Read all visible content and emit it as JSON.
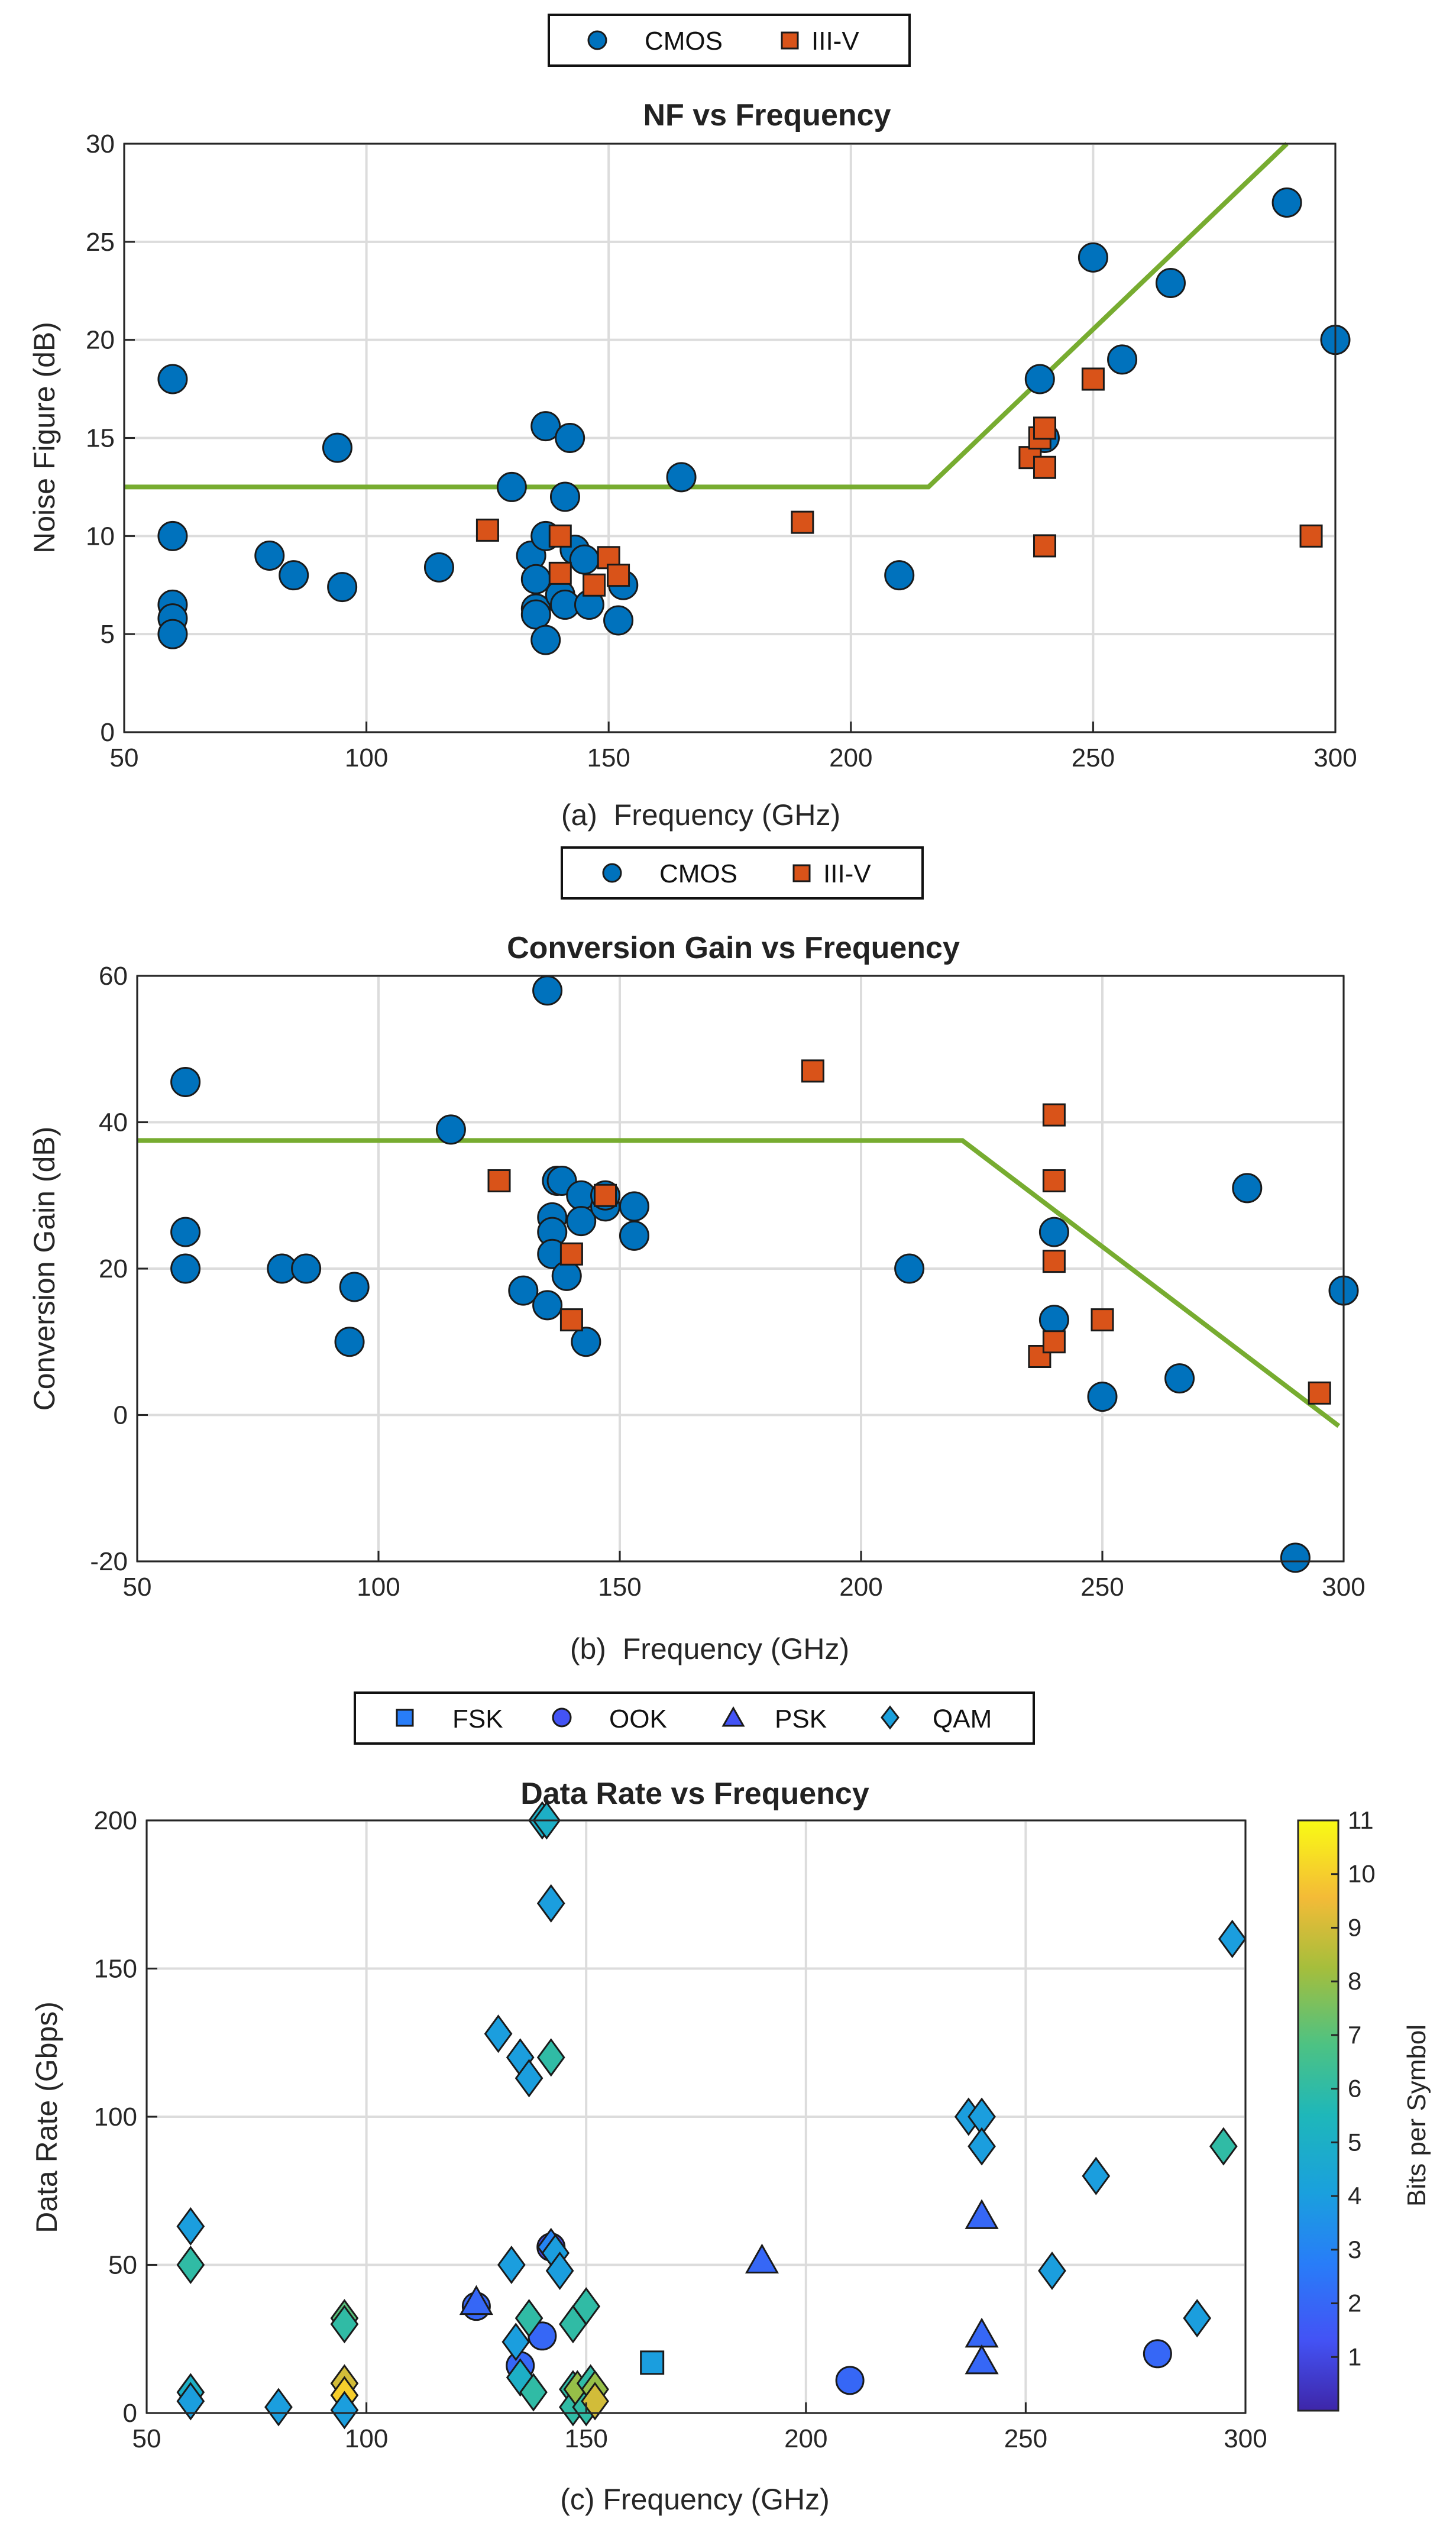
{
  "chart_data": [
    {
      "type": "scatter",
      "title": "NF vs Frequency",
      "xlabel": "(a)  Frequency (GHz)",
      "ylabel": "Noise Figure (dB)",
      "xlim": [
        50,
        300
      ],
      "ylim": [
        0,
        30
      ],
      "xticks": [
        "50",
        "100",
        "150",
        "200",
        "250",
        "300"
      ],
      "yticks": [
        "0",
        "5",
        "10",
        "15",
        "20",
        "25",
        "30"
      ],
      "grid": true,
      "legend": {
        "placement": "top-center",
        "entries": [
          "CMOS",
          "III-V"
        ]
      },
      "series": [
        {
          "name": "CMOS",
          "marker": "circle",
          "color": "#0072BD",
          "points": [
            [
              60,
              18
            ],
            [
              60,
              10
            ],
            [
              60,
              6.5
            ],
            [
              60,
              5.8
            ],
            [
              60,
              5
            ],
            [
              80,
              9
            ],
            [
              85,
              8
            ],
            [
              94,
              14.5
            ],
            [
              95,
              7.4
            ],
            [
              115,
              8.4
            ],
            [
              130,
              12.5
            ],
            [
              134,
              9
            ],
            [
              135,
              7.8
            ],
            [
              135,
              6.3
            ],
            [
              135,
              6
            ],
            [
              137,
              15.6
            ],
            [
              137,
              10
            ],
            [
              137,
              4.7
            ],
            [
              140,
              7
            ],
            [
              141,
              6.5
            ],
            [
              141,
              12
            ],
            [
              142,
              15
            ],
            [
              143,
              9.3
            ],
            [
              145,
              8.8
            ],
            [
              146,
              6.5
            ],
            [
              152,
              5.7
            ],
            [
              153,
              7.5
            ],
            [
              165,
              13
            ],
            [
              210,
              8
            ],
            [
              239,
              18
            ],
            [
              240,
              15
            ],
            [
              250,
              24.2
            ],
            [
              256,
              19
            ],
            [
              266,
              22.9
            ],
            [
              290,
              27
            ],
            [
              300,
              20
            ]
          ]
        },
        {
          "name": "III-V",
          "marker": "square",
          "color": "#D95319",
          "points": [
            [
              125,
              10.3
            ],
            [
              140,
              10
            ],
            [
              140,
              8.1
            ],
            [
              147,
              7.5
            ],
            [
              150,
              8.9
            ],
            [
              152,
              8
            ],
            [
              190,
              10.7
            ],
            [
              237,
              14
            ],
            [
              239,
              15
            ],
            [
              240,
              15.5
            ],
            [
              240,
              13.5
            ],
            [
              240,
              9.5
            ],
            [
              250,
              18
            ],
            [
              295,
              10
            ]
          ]
        },
        {
          "name": "",
          "type": "line",
          "color": "#77AC30",
          "points": [
            [
              50,
              12.5
            ],
            [
              216,
              12.5
            ],
            [
              290,
              30
            ]
          ]
        }
      ]
    },
    {
      "type": "scatter",
      "title": "Conversion Gain vs Frequency",
      "xlabel": "(b)  Frequency (GHz)",
      "ylabel": "Conversion Gain (dB)",
      "xlim": [
        50,
        300
      ],
      "ylim": [
        -20,
        60
      ],
      "xticks": [
        "50",
        "100",
        "150",
        "200",
        "250",
        "300"
      ],
      "yticks": [
        "-20",
        "0",
        "20",
        "40",
        "60"
      ],
      "grid": true,
      "legend": {
        "placement": "top-center",
        "entries": [
          "CMOS",
          "III-V"
        ]
      },
      "series": [
        {
          "name": "CMOS",
          "marker": "circle",
          "color": "#0072BD",
          "points": [
            [
              60,
              45.5
            ],
            [
              60,
              25
            ],
            [
              60,
              20
            ],
            [
              80,
              20
            ],
            [
              85,
              20
            ],
            [
              94,
              10
            ],
            [
              95,
              17.5
            ],
            [
              115,
              39
            ],
            [
              130,
              17
            ],
            [
              135,
              15
            ],
            [
              135,
              58
            ],
            [
              136,
              27
            ],
            [
              136,
              25
            ],
            [
              136,
              22
            ],
            [
              137,
              32
            ],
            [
              138,
              32
            ],
            [
              139,
              19
            ],
            [
              142,
              30
            ],
            [
              142,
              26.5
            ],
            [
              143,
              10
            ],
            [
              147,
              28.5
            ],
            [
              147,
              30
            ],
            [
              153,
              24.5
            ],
            [
              153,
              28.5
            ],
            [
              210,
              20
            ],
            [
              240,
              25
            ],
            [
              240,
              13
            ],
            [
              250,
              2.5
            ],
            [
              266,
              5
            ],
            [
              280,
              31
            ],
            [
              290,
              -19.5
            ],
            [
              300,
              17
            ]
          ]
        },
        {
          "name": "III-V",
          "marker": "square",
          "color": "#D95319",
          "points": [
            [
              125,
              32
            ],
            [
              140,
              22
            ],
            [
              140,
              13
            ],
            [
              147,
              30
            ],
            [
              190,
              47
            ],
            [
              237,
              8
            ],
            [
              240,
              41
            ],
            [
              240,
              32
            ],
            [
              240,
              21
            ],
            [
              240,
              10
            ],
            [
              250,
              13
            ],
            [
              295,
              3
            ]
          ]
        },
        {
          "name": "",
          "type": "line",
          "color": "#77AC30",
          "points": [
            [
              50,
              37.5
            ],
            [
              221,
              37.5
            ],
            [
              299,
              -1.5
            ]
          ]
        }
      ]
    },
    {
      "type": "scatter",
      "title": "Data Rate vs Frequency",
      "xlabel": "(c) Frequency (GHz)",
      "ylabel": "Data Rate (Gbps)",
      "xlim": [
        50,
        300
      ],
      "ylim": [
        0,
        200
      ],
      "xticks": [
        "50",
        "100",
        "150",
        "200",
        "250",
        "300"
      ],
      "yticks": [
        "0",
        "50",
        "100",
        "150",
        "200"
      ],
      "grid": true,
      "legend": {
        "placement": "top-center",
        "entries": [
          "FSK",
          "OOK",
          "PSK",
          "QAM"
        ]
      },
      "colorbar": {
        "label": "Bits per Symbol",
        "range": [
          0,
          11
        ],
        "ticks": [
          "1",
          "2",
          "3",
          "4",
          "5",
          "6",
          "7",
          "8",
          "9",
          "10",
          "11"
        ],
        "colormap": "parula"
      },
      "series": [
        {
          "name": "FSK",
          "marker": "square",
          "points": [
            [
              165,
              17,
              4
            ]
          ]
        },
        {
          "name": "OOK",
          "marker": "circle",
          "points": [
            [
              125,
              36,
              2
            ],
            [
              135,
              16,
              2
            ],
            [
              140,
              26,
              2
            ],
            [
              142,
              56,
              1
            ],
            [
              210,
              11,
              2
            ],
            [
              280,
              20,
              2
            ]
          ]
        },
        {
          "name": "PSK",
          "marker": "triangle",
          "points": [
            [
              125,
              37,
              2
            ],
            [
              190,
              51,
              2
            ],
            [
              240,
              66,
              2
            ],
            [
              240,
              26,
              2
            ],
            [
              240,
              17,
              2
            ]
          ]
        },
        {
          "name": "QAM",
          "marker": "diamond",
          "points": [
            [
              60,
              63,
              4
            ],
            [
              60,
              50,
              6
            ],
            [
              60,
              7,
              5
            ],
            [
              60,
              4,
              4
            ],
            [
              80,
              2,
              4
            ],
            [
              95,
              32,
              7
            ],
            [
              95,
              30,
              6
            ],
            [
              95,
              10,
              9
            ],
            [
              95,
              6,
              10
            ],
            [
              95,
              1,
              4
            ],
            [
              130,
              128,
              4
            ],
            [
              133,
              50,
              4
            ],
            [
              134,
              24,
              4
            ],
            [
              135,
              120,
              4
            ],
            [
              135,
              12,
              5
            ],
            [
              137,
              113,
              4
            ],
            [
              137,
              32,
              6
            ],
            [
              138,
              7,
              6
            ],
            [
              140,
              200,
              5
            ],
            [
              141,
              200,
              5
            ],
            [
              142,
              172,
              4
            ],
            [
              142,
              120,
              6
            ],
            [
              142,
              56,
              3
            ],
            [
              143,
              54,
              4
            ],
            [
              144,
              48,
              4
            ],
            [
              147,
              30,
              6
            ],
            [
              147,
              8,
              6
            ],
            [
              147,
              2,
              6
            ],
            [
              148,
              8,
              8
            ],
            [
              150,
              2,
              6
            ],
            [
              150,
              36,
              6
            ],
            [
              151,
              10,
              6
            ],
            [
              152,
              8,
              8
            ],
            [
              152,
              4,
              9
            ],
            [
              237,
              100,
              4
            ],
            [
              240,
              100,
              4
            ],
            [
              240,
              90,
              4
            ],
            [
              256,
              48,
              4
            ],
            [
              266,
              80,
              4
            ],
            [
              289,
              32,
              4
            ],
            [
              295,
              90,
              6
            ],
            [
              297,
              160,
              4
            ]
          ]
        }
      ]
    }
  ]
}
